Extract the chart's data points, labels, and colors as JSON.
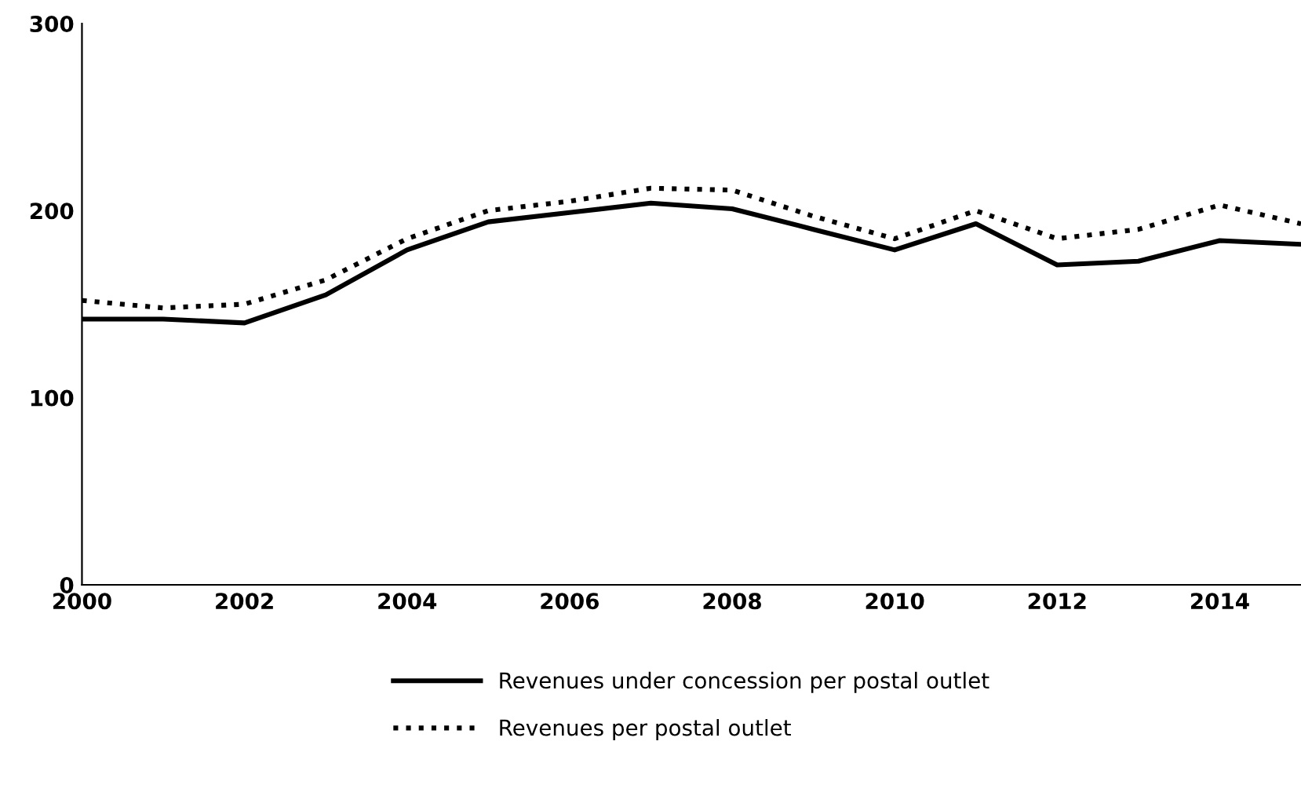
{
  "chart_data": {
    "type": "line",
    "x": [
      2000,
      2001,
      2002,
      2003,
      2004,
      2005,
      2006,
      2007,
      2008,
      2009,
      2010,
      2011,
      2012,
      2013,
      2014,
      2015
    ],
    "series": [
      {
        "name": "Revenues under concession per postal outlet",
        "color": "#000000",
        "line_style": "solid",
        "values": [
          142,
          142,
          140,
          155,
          179,
          194,
          199,
          204,
          201,
          190,
          179,
          193,
          171,
          173,
          184,
          182
        ]
      },
      {
        "name": "Revenues per postal outlet",
        "color": "#000000",
        "line_style": "dotted",
        "values": [
          152,
          148,
          150,
          163,
          185,
          200,
          205,
          212,
          211,
          197,
          185,
          200,
          185,
          190,
          203,
          193
        ]
      }
    ],
    "xlim": [
      2000,
      2015
    ],
    "xticks": [
      2000,
      2002,
      2004,
      2006,
      2008,
      2010,
      2012,
      2014
    ],
    "ylim": [
      0,
      300
    ],
    "yticks": [
      0,
      100,
      200,
      300
    ],
    "grid": false,
    "legend": "bottom",
    "marker": "none"
  }
}
